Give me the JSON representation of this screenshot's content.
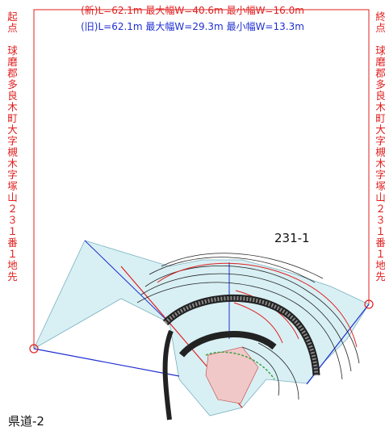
{
  "header": {
    "new_line": "(新)L=62.1m 最大幅W=40.6m 最小幅W=16.0m",
    "old_line": "(旧)L=62.1m 最大幅W=29.3m 最小幅W=13.3m"
  },
  "start_label": "起点　球磨郡多良木町大字槻木字塚山２３１番１地先",
  "end_label": "終点　球磨郡多良木町大字槻木字塚山２３１番１地先",
  "parcel_label": "231-1",
  "road_label": "県道-2"
}
